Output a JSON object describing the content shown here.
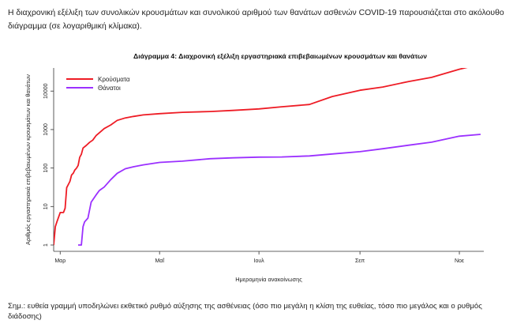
{
  "intro_text": "Η διαχρονική εξέλιξη των συνολικών κρουσμάτων και συνολικού αριθμού των θανάτων ασθενών COVID-19 παρουσιάζεται στο ακόλουθο διάγραμμα (σε λογαριθμική κλίμακα).",
  "footnote": "Σημ.: ευθεία γραμμή υποδηλώνει εκθετικό ρυθμό αύξησης της ασθένειας (όσο πιο μεγάλη η κλίση της ευθείας, τόσο πιο μεγάλος και ο ρυθμός διάδοσης)",
  "chart_data": {
    "type": "line",
    "title": "Διάγραμμα 4: Διαχρονική εξέλιξη εργαστηριακά επιβεβαιωμένων κρουσμάτων και θανάτων",
    "xlabel": "Ημερομηνία ανακοίνωσης",
    "ylabel": "Αριθμός εργαστηριακά επιβεβαιωμένων κρουσμάτων και θανάτων",
    "y_scale": "log",
    "ylim": [
      1,
      30000
    ],
    "xlim": [
      "2020-02-26",
      "2020-11-16"
    ],
    "y_ticks": [
      1,
      10,
      100,
      1000,
      10000
    ],
    "y_tick_labels": [
      "1",
      "10",
      "100",
      "1000",
      "10000"
    ],
    "x_ticks": [
      "2020-03-01",
      "2020-05-01",
      "2020-07-01",
      "2020-09-01",
      "2020-11-01"
    ],
    "x_tick_labels": [
      "Μαρ",
      "Μαΐ",
      "Ιουλ",
      "Σεπ",
      "Νοε"
    ],
    "legend_position": "top-left",
    "grid": false,
    "series": [
      {
        "name": "Κρούσματα",
        "color": "#ee1c25",
        "points": [
          [
            "2020-02-26",
            1
          ],
          [
            "2020-02-27",
            3
          ],
          [
            "2020-02-28",
            4
          ],
          [
            "2020-03-01",
            7
          ],
          [
            "2020-03-03",
            7
          ],
          [
            "2020-03-04",
            9
          ],
          [
            "2020-03-05",
            31
          ],
          [
            "2020-03-07",
            45
          ],
          [
            "2020-03-08",
            66
          ],
          [
            "2020-03-09",
            73
          ],
          [
            "2020-03-10",
            89
          ],
          [
            "2020-03-11",
            99
          ],
          [
            "2020-03-12",
            117
          ],
          [
            "2020-03-13",
            190
          ],
          [
            "2020-03-14",
            228
          ],
          [
            "2020-03-15",
            331
          ],
          [
            "2020-03-17",
            387
          ],
          [
            "2020-03-19",
            464
          ],
          [
            "2020-03-21",
            530
          ],
          [
            "2020-03-23",
            695
          ],
          [
            "2020-03-25",
            821
          ],
          [
            "2020-03-28",
            1061
          ],
          [
            "2020-04-01",
            1314
          ],
          [
            "2020-04-05",
            1735
          ],
          [
            "2020-04-10",
            2011
          ],
          [
            "2020-04-15",
            2192
          ],
          [
            "2020-04-21",
            2401
          ],
          [
            "2020-05-01",
            2591
          ],
          [
            "2020-05-15",
            2810
          ],
          [
            "2020-06-01",
            2937
          ],
          [
            "2020-06-15",
            3148
          ],
          [
            "2020-07-01",
            3432
          ],
          [
            "2020-07-15",
            3910
          ],
          [
            "2020-08-01",
            4477
          ],
          [
            "2020-08-15",
            7222
          ],
          [
            "2020-09-01",
            10524
          ],
          [
            "2020-09-15",
            12734
          ],
          [
            "2020-10-01",
            17707
          ],
          [
            "2020-10-15",
            22652
          ],
          [
            "2020-11-01",
            36934
          ],
          [
            "2020-11-14",
            50000
          ]
        ]
      },
      {
        "name": "Θάνατοι",
        "color": "#9b30ff",
        "points": [
          [
            "2020-03-12",
            1
          ],
          [
            "2020-03-14",
            1
          ],
          [
            "2020-03-15",
            3
          ],
          [
            "2020-03-16",
            4
          ],
          [
            "2020-03-18",
            5
          ],
          [
            "2020-03-20",
            13
          ],
          [
            "2020-03-23",
            20
          ],
          [
            "2020-03-25",
            26
          ],
          [
            "2020-03-28",
            32
          ],
          [
            "2020-04-01",
            50
          ],
          [
            "2020-04-05",
            73
          ],
          [
            "2020-04-10",
            96
          ],
          [
            "2020-04-15",
            108
          ],
          [
            "2020-04-21",
            121
          ],
          [
            "2020-05-01",
            140
          ],
          [
            "2020-05-15",
            151
          ],
          [
            "2020-06-01",
            175
          ],
          [
            "2020-06-15",
            184
          ],
          [
            "2020-07-01",
            192
          ],
          [
            "2020-07-15",
            194
          ],
          [
            "2020-08-01",
            206
          ],
          [
            "2020-08-15",
            232
          ],
          [
            "2020-09-01",
            266
          ],
          [
            "2020-09-15",
            317
          ],
          [
            "2020-10-01",
            393
          ],
          [
            "2020-10-15",
            469
          ],
          [
            "2020-11-01",
            673
          ],
          [
            "2020-11-14",
            750
          ]
        ]
      }
    ]
  }
}
